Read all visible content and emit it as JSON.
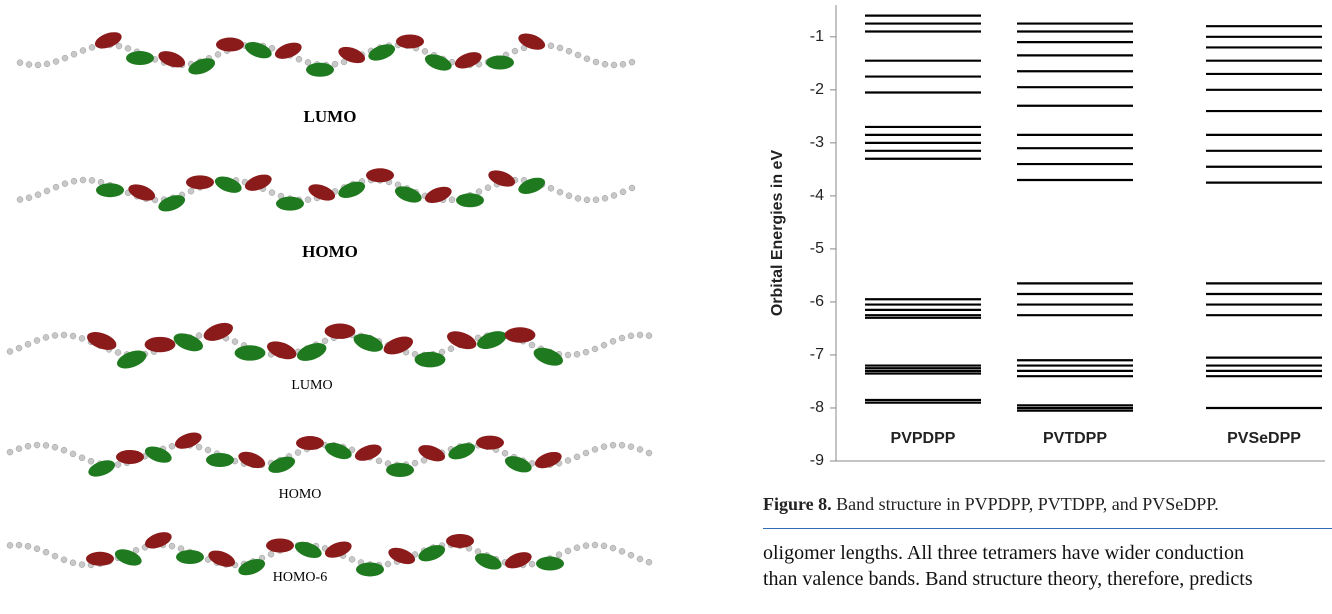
{
  "figure_left": {
    "labels": [
      "LUMO",
      "HOMO",
      "LUMO",
      "HOMO",
      "HOMO-6"
    ]
  },
  "chart_data": {
    "type": "levels",
    "y_label": "Orbital Energies in eV",
    "ylim": [
      -9,
      -0.4
    ],
    "yticks": [
      -1,
      -2,
      -3,
      -4,
      -5,
      -6,
      -7,
      -8,
      -9
    ],
    "color": "#000000",
    "series": [
      {
        "name": "PVPDPP",
        "values": [
          -0.6,
          -0.75,
          -0.9,
          -1.45,
          -1.75,
          -2.05,
          -2.7,
          -2.85,
          -3.0,
          -3.15,
          -3.3,
          -5.95,
          -6.05,
          -6.15,
          -6.25,
          -6.3,
          -7.2,
          -7.25,
          -7.3,
          -7.35,
          -7.85,
          -7.9
        ]
      },
      {
        "name": "PVTDPP",
        "values": [
          -0.75,
          -0.9,
          -1.1,
          -1.35,
          -1.65,
          -1.95,
          -2.3,
          -2.85,
          -3.1,
          -3.4,
          -3.7,
          -5.65,
          -5.85,
          -6.05,
          -6.25,
          -7.1,
          -7.2,
          -7.3,
          -7.4,
          -7.95,
          -8.0,
          -8.05
        ]
      },
      {
        "name": "PVSeDPP",
        "values": [
          -0.8,
          -1.0,
          -1.2,
          -1.45,
          -1.7,
          -2.0,
          -2.4,
          -2.85,
          -3.15,
          -3.45,
          -3.75,
          -5.65,
          -5.85,
          -6.05,
          -6.25,
          -7.05,
          -7.2,
          -7.3,
          -7.4,
          -8.0
        ]
      }
    ]
  },
  "caption": {
    "label": "Figure 8.",
    "text": " Band structure in PVPDPP, PVTDPP, and PVSeDPP."
  },
  "body": [
    "oligomer lengths. All three tetramers have wider conduction",
    "than valence bands. Band structure theory, therefore, predicts"
  ]
}
